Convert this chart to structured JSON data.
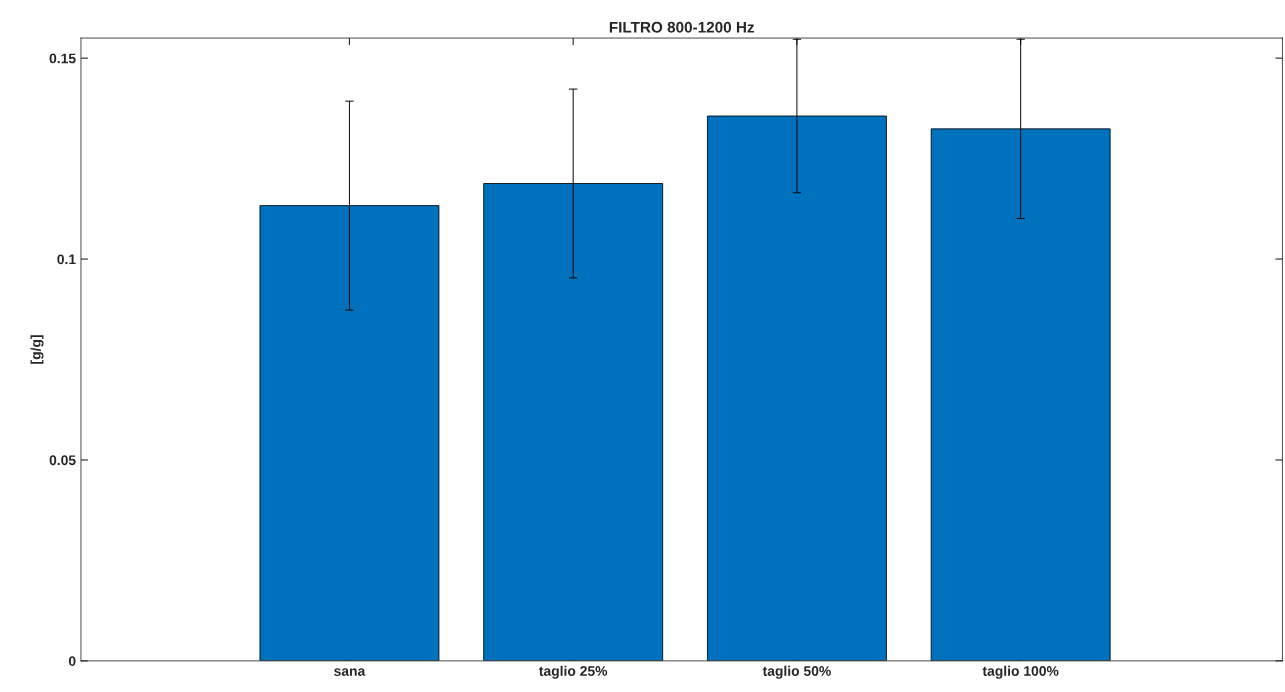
{
  "chart_data": {
    "type": "bar",
    "title": "FILTRO 800-1200 Hz",
    "ylabel": "[g/g]",
    "categories": [
      "sana",
      "taglio 25%",
      "taglio 50%",
      "taglio 100%"
    ],
    "values": [
      0.1133,
      0.1188,
      0.1356,
      0.1324
    ],
    "errors": [
      0.026,
      0.0235,
      0.0191,
      0.0223
    ],
    "color": "#0072bd",
    "ylim": [
      0,
      0.155
    ],
    "yticks": [
      0,
      0.05,
      0.1,
      0.15
    ],
    "grid": false,
    "legend": false
  }
}
